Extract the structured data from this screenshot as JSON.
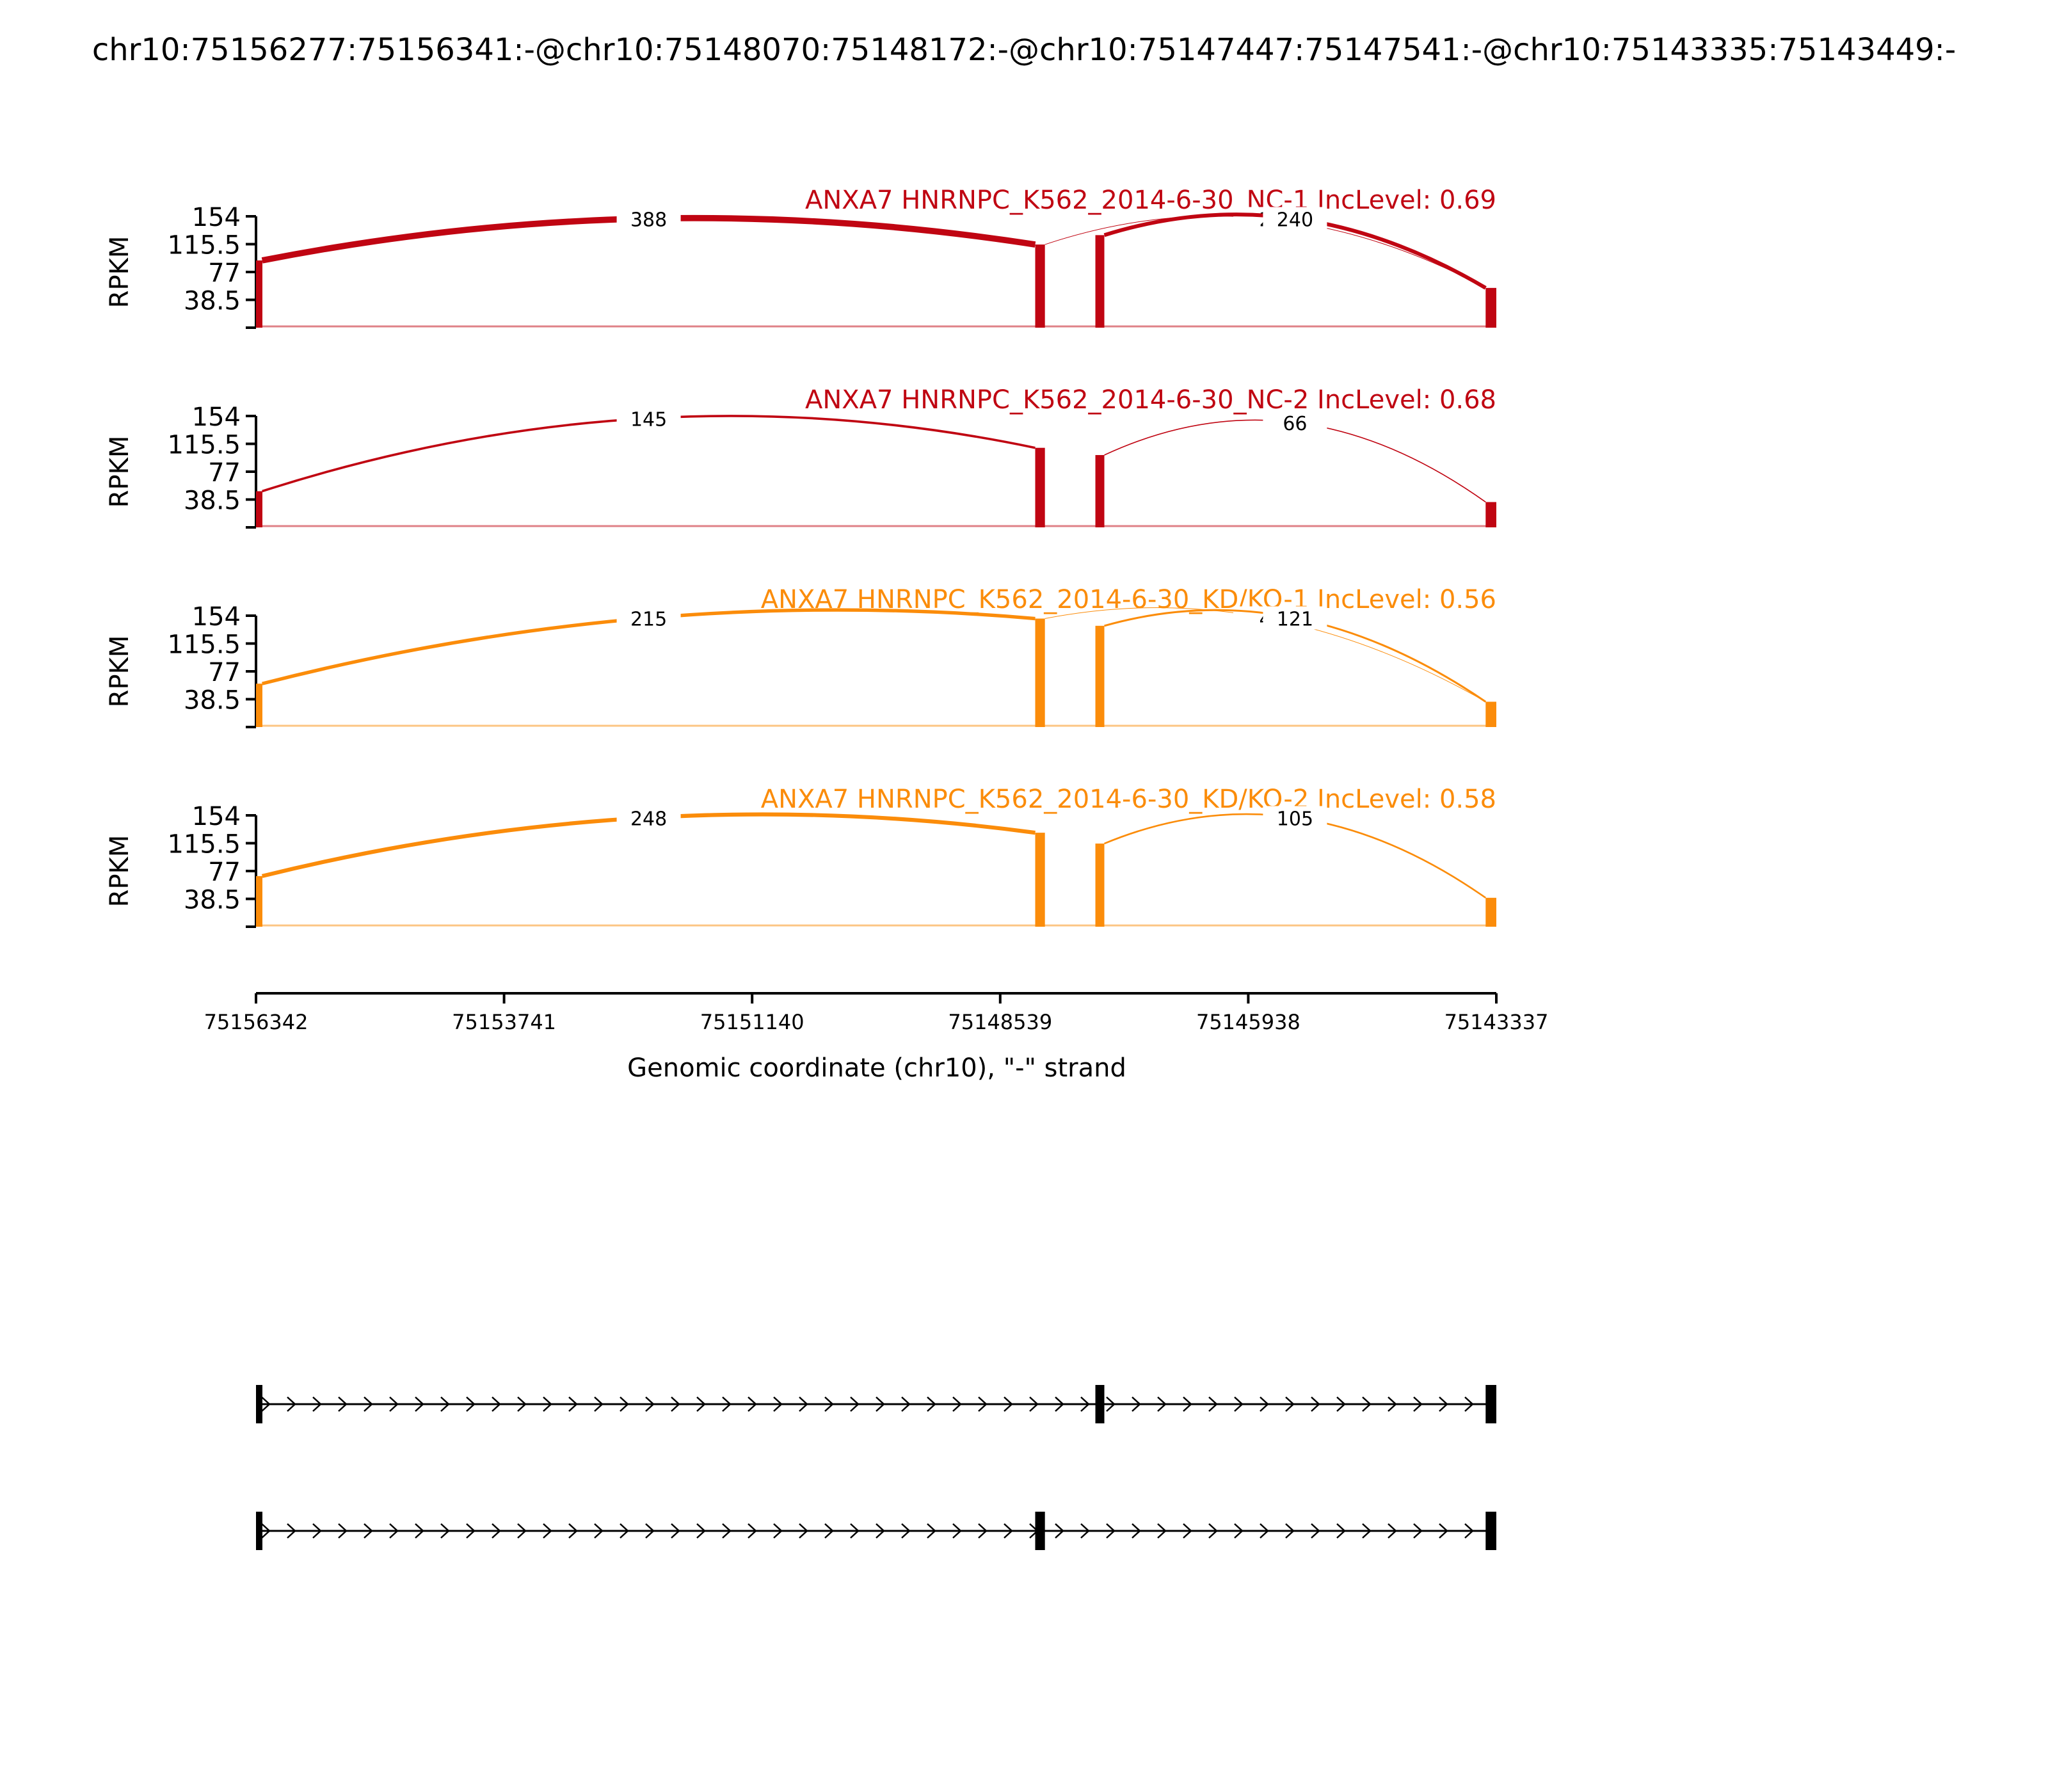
{
  "chart_data": {
    "type": "sashimi",
    "title": "chr10:75156277:75156341:-@chr10:75148070:75148172:-@chr10:75147447:75147541:-@chr10:75143335:75143449:-",
    "ylabel": "RPKM",
    "ylim": [
      0,
      154
    ],
    "yticks": [
      "154",
      "115.5",
      "77",
      "38.5"
    ],
    "xlabel": "Genomic coordinate (chr10), \"-\" strand",
    "xlim": [
      75156342,
      75143337
    ],
    "xticks": [
      "75156342",
      "75153741",
      "75151140",
      "75148539",
      "75145938",
      "75143337"
    ],
    "exons": [
      {
        "start": 75156342,
        "end": 75156277
      },
      {
        "start": 75148172,
        "end": 75148070
      },
      {
        "start": 75147541,
        "end": 75147447
      },
      {
        "start": 75143449,
        "end": 75143337
      }
    ],
    "tracks": [
      {
        "label": "ANXA7 HNRNPC_K562_2014-6-30_NC-1 IncLevel: 0.69",
        "color": "#c00512",
        "exon_heights": [
          93,
          115,
          128,
          55
        ],
        "junctions": [
          {
            "from": 75156277,
            "to": 75148172,
            "count": 388,
            "side": "up",
            "label": "388"
          },
          {
            "from": 75148070,
            "to": 75143449,
            "count": 2,
            "side": "up",
            "label": "2"
          },
          {
            "from": 75147447,
            "to": 75143449,
            "count": 240,
            "side": "up",
            "label": "240"
          }
        ]
      },
      {
        "label": "ANXA7 HNRNPC_K562_2014-6-30_NC-2 IncLevel: 0.68",
        "color": "#c00512",
        "exon_heights": [
          50,
          110,
          100,
          35
        ],
        "junctions": [
          {
            "from": 75156277,
            "to": 75148172,
            "count": 145,
            "side": "up",
            "label": "145"
          },
          {
            "from": 75147447,
            "to": 75143449,
            "count": 66,
            "side": "up",
            "label": "66"
          }
        ]
      },
      {
        "label": "ANXA7 HNRNPC_K562_2014-6-30_KD/KO-1 IncLevel: 0.56",
        "color": "#fb8c0a",
        "exon_heights": [
          60,
          150,
          140,
          35
        ],
        "junctions": [
          {
            "from": 75156277,
            "to": 75148172,
            "count": 215,
            "side": "up",
            "label": "215"
          },
          {
            "from": 75148070,
            "to": 75143449,
            "count": 4,
            "side": "up",
            "label": "4"
          },
          {
            "from": 75147447,
            "to": 75143449,
            "count": 121,
            "side": "up",
            "label": "121"
          }
        ]
      },
      {
        "label": "ANXA7 HNRNPC_K562_2014-6-30_KD/KO-2 IncLevel: 0.58",
        "color": "#fb8c0a",
        "exon_heights": [
          70,
          130,
          115,
          40
        ],
        "junctions": [
          {
            "from": 75156277,
            "to": 75148172,
            "count": 248,
            "side": "up",
            "label": "248"
          },
          {
            "from": 75147447,
            "to": 75143449,
            "count": 105,
            "side": "up",
            "label": "105"
          }
        ]
      }
    ],
    "isoforms": [
      {
        "exons": [
          [
            75156342,
            75156277
          ],
          [
            75147541,
            75147447
          ],
          [
            75143449,
            75143337
          ]
        ]
      },
      {
        "exons": [
          [
            75156342,
            75156277
          ],
          [
            75148172,
            75148070
          ],
          [
            75143449,
            75143337
          ]
        ]
      }
    ]
  }
}
